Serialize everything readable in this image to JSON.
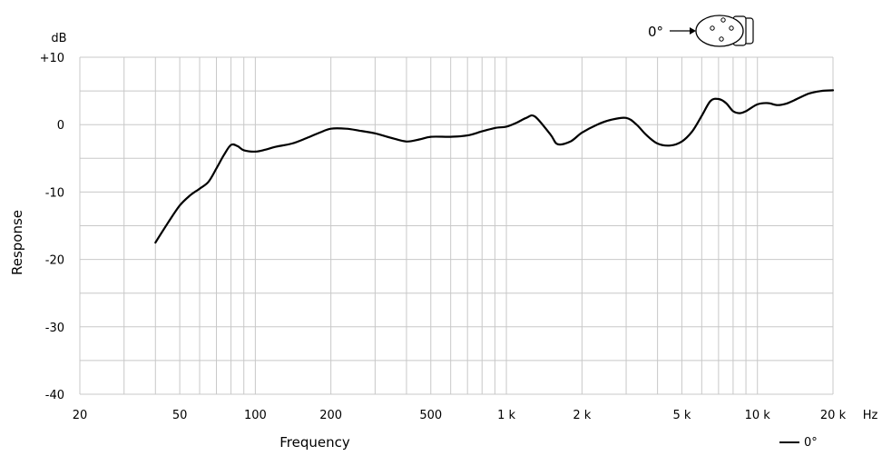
{
  "chart_data": {
    "type": "line",
    "x_scale": "log",
    "xlim": [
      20,
      20000
    ],
    "ylim": [
      -40,
      10
    ],
    "grid": true,
    "xlabel": "Frequency",
    "ylabel": "Response",
    "y_unit": "dB",
    "x_unit": "Hz",
    "y_ticks": [
      {
        "value": 10,
        "label": "+10"
      },
      {
        "value": 0,
        "label": "0"
      },
      {
        "value": -10,
        "label": "-10"
      },
      {
        "value": -20,
        "label": "-20"
      },
      {
        "value": -30,
        "label": "-30"
      },
      {
        "value": -40,
        "label": "-40"
      }
    ],
    "x_ticks": [
      {
        "value": 20,
        "label": "20"
      },
      {
        "value": 50,
        "label": "50"
      },
      {
        "value": 100,
        "label": "100"
      },
      {
        "value": 200,
        "label": "200"
      },
      {
        "value": 500,
        "label": "500"
      },
      {
        "value": 1000,
        "label": "1 k"
      },
      {
        "value": 2000,
        "label": "2 k"
      },
      {
        "value": 5000,
        "label": "5 k"
      },
      {
        "value": 10000,
        "label": "10 k"
      },
      {
        "value": 20000,
        "label": "20 k"
      }
    ],
    "legend": {
      "position": "bottom-right",
      "label": "0°"
    },
    "series": [
      {
        "name": "0°",
        "color": "#000000",
        "x": [
          40,
          45,
          50,
          55,
          60,
          65,
          70,
          75,
          80,
          85,
          90,
          100,
          110,
          120,
          140,
          160,
          180,
          200,
          230,
          260,
          300,
          350,
          400,
          450,
          500,
          600,
          700,
          800,
          900,
          1000,
          1100,
          1200,
          1300,
          1500,
          1600,
          1800,
          2000,
          2300,
          2600,
          3000,
          3300,
          3600,
          4000,
          4500,
          5000,
          5500,
          6000,
          6500,
          7000,
          7500,
          8000,
          8500,
          9000,
          10000,
          11000,
          12000,
          13000,
          14000,
          16000,
          18000,
          20000
        ],
        "y": [
          -17.5,
          -14.5,
          -12,
          -10.5,
          -9.5,
          -8.5,
          -6.5,
          -4.5,
          -3,
          -3.2,
          -3.8,
          -4,
          -3.7,
          -3.3,
          -2.8,
          -2,
          -1.2,
          -0.6,
          -0.6,
          -0.9,
          -1.3,
          -2,
          -2.5,
          -2.2,
          -1.8,
          -1.8,
          -1.6,
          -1,
          -0.5,
          -0.3,
          0.3,
          1,
          1.2,
          -1.5,
          -2.9,
          -2.5,
          -1.2,
          0,
          0.7,
          1,
          0,
          -1.5,
          -2.8,
          -3.1,
          -2.5,
          -1,
          1.3,
          3.5,
          3.8,
          3.2,
          2,
          1.7,
          2,
          3,
          3.2,
          2.9,
          3.1,
          3.6,
          4.6,
          5,
          5.1
        ]
      }
    ],
    "icon": "microphone-capsule-0deg",
    "icon_label": "0°"
  }
}
